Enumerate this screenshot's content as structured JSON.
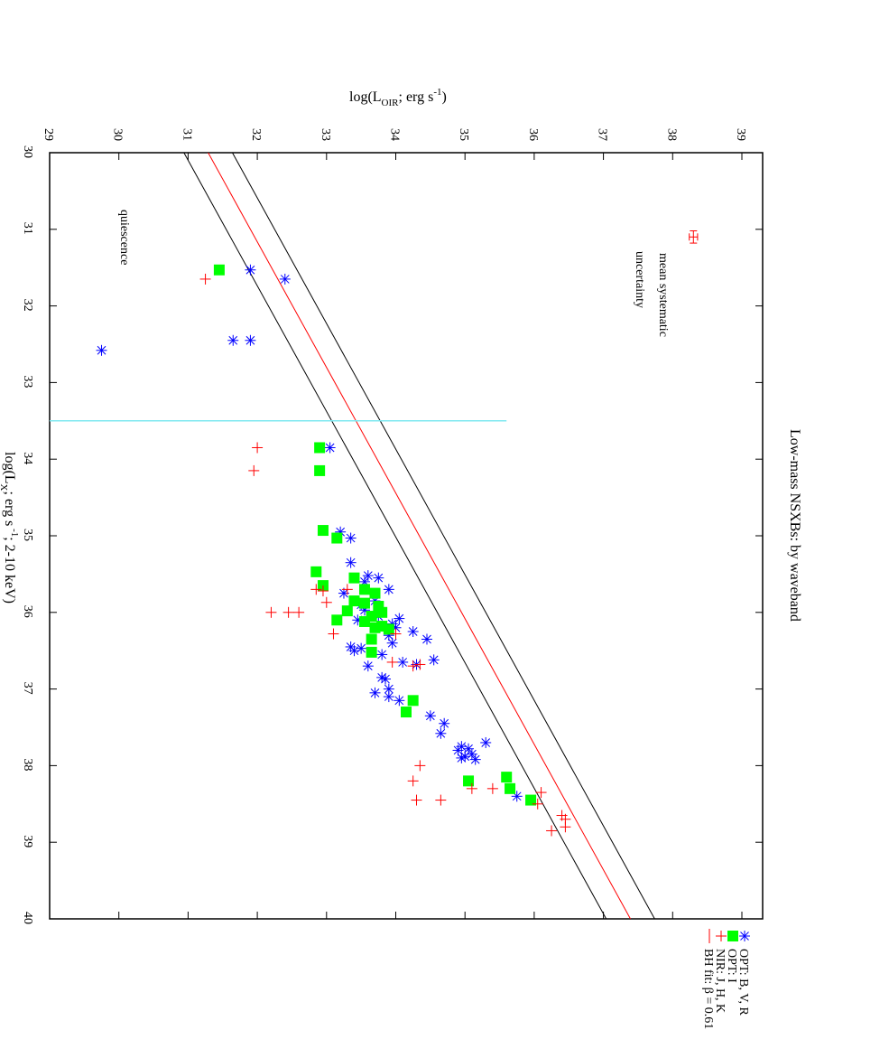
{
  "chart_data": {
    "type": "scatter",
    "orientation": "rotated 90 degrees clockwise (x axis runs top to bottom, y axis runs right to left)",
    "title": "Low-mass NSXBs: by waveband",
    "xlabel": "log(L_X; erg s^-1; 2-10 keV)",
    "ylabel": "log(L_OIR; erg s^-1)",
    "xlim": [
      30,
      40
    ],
    "ylim": [
      29,
      39.3
    ],
    "xticks": [
      "30",
      "31",
      "32",
      "33",
      "34",
      "35",
      "36",
      "37",
      "38",
      "39",
      "40"
    ],
    "yticks": [
      "29",
      "30",
      "31",
      "32",
      "33",
      "34",
      "35",
      "36",
      "37",
      "38",
      "39"
    ],
    "grid": false,
    "legend_position": "bottom-right",
    "annotations": [
      {
        "text": "mean systematic",
        "line2": "uncertainty"
      },
      {
        "text": "quiescence"
      }
    ],
    "series": [
      {
        "name": "OPT: B, V, R",
        "marker": "asterisk",
        "color": "#0000ff",
        "points": [
          [
            31.53,
            31.9
          ],
          [
            31.65,
            32.4
          ],
          [
            32.45,
            31.65
          ],
          [
            32.45,
            31.9
          ],
          [
            32.58,
            29.75
          ],
          [
            33.85,
            33.05
          ],
          [
            34.95,
            33.2
          ],
          [
            35.03,
            33.35
          ],
          [
            35.35,
            33.35
          ],
          [
            35.52,
            33.6
          ],
          [
            35.55,
            33.75
          ],
          [
            35.6,
            33.55
          ],
          [
            35.7,
            33.9
          ],
          [
            35.75,
            33.25
          ],
          [
            35.85,
            33.7
          ],
          [
            35.9,
            33.5
          ],
          [
            35.97,
            33.55
          ],
          [
            36.05,
            33.75
          ],
          [
            36.08,
            34.05
          ],
          [
            36.1,
            33.45
          ],
          [
            36.15,
            33.95
          ],
          [
            36.2,
            34.0
          ],
          [
            36.25,
            34.25
          ],
          [
            36.3,
            33.9
          ],
          [
            36.35,
            34.45
          ],
          [
            36.4,
            33.95
          ],
          [
            36.45,
            33.35
          ],
          [
            36.47,
            33.5
          ],
          [
            36.5,
            33.4
          ],
          [
            36.55,
            33.8
          ],
          [
            36.62,
            34.55
          ],
          [
            36.65,
            34.1
          ],
          [
            36.68,
            34.3
          ],
          [
            36.7,
            33.6
          ],
          [
            36.85,
            33.8
          ],
          [
            36.87,
            33.85
          ],
          [
            37.0,
            33.9
          ],
          [
            37.05,
            33.7
          ],
          [
            37.1,
            33.9
          ],
          [
            37.15,
            34.05
          ],
          [
            37.35,
            34.5
          ],
          [
            37.45,
            34.7
          ],
          [
            37.58,
            34.65
          ],
          [
            37.7,
            35.3
          ],
          [
            37.75,
            34.95
          ],
          [
            37.78,
            35.05
          ],
          [
            37.8,
            34.9
          ],
          [
            37.85,
            35.1
          ],
          [
            37.88,
            35.0
          ],
          [
            37.9,
            34.95
          ],
          [
            37.92,
            35.15
          ],
          [
            38.4,
            35.75
          ]
        ]
      },
      {
        "name": "OPT: I",
        "marker": "square",
        "color": "#00ff00",
        "points": [
          [
            31.53,
            31.45
          ],
          [
            33.85,
            32.9
          ],
          [
            34.15,
            32.9
          ],
          [
            34.93,
            32.95
          ],
          [
            35.03,
            33.15
          ],
          [
            35.47,
            32.85
          ],
          [
            35.55,
            33.4
          ],
          [
            35.65,
            32.95
          ],
          [
            35.7,
            33.55
          ],
          [
            35.75,
            33.7
          ],
          [
            35.85,
            33.4
          ],
          [
            35.88,
            33.55
          ],
          [
            35.92,
            33.75
          ],
          [
            35.98,
            33.3
          ],
          [
            36.0,
            33.8
          ],
          [
            36.05,
            33.65
          ],
          [
            36.1,
            33.15
          ],
          [
            36.12,
            33.55
          ],
          [
            36.18,
            33.8
          ],
          [
            36.2,
            33.7
          ],
          [
            36.22,
            33.9
          ],
          [
            36.35,
            33.65
          ],
          [
            36.52,
            33.65
          ],
          [
            37.15,
            34.25
          ],
          [
            37.3,
            34.15
          ],
          [
            38.2,
            35.05
          ],
          [
            38.15,
            35.6
          ],
          [
            38.3,
            35.65
          ],
          [
            38.45,
            35.95
          ]
        ]
      },
      {
        "name": "NIR: J, H, K",
        "marker": "plus",
        "color": "#ff0000",
        "points": [
          [
            31.65,
            31.25
          ],
          [
            33.85,
            32.0
          ],
          [
            34.15,
            31.95
          ],
          [
            35.7,
            32.85
          ],
          [
            35.7,
            33.3
          ],
          [
            35.72,
            32.95
          ],
          [
            35.87,
            33.0
          ],
          [
            36.0,
            32.2
          ],
          [
            36.0,
            32.45
          ],
          [
            36.0,
            32.6
          ],
          [
            36.28,
            33.1
          ],
          [
            36.28,
            34.0
          ],
          [
            36.65,
            33.95
          ],
          [
            36.68,
            34.35
          ],
          [
            36.7,
            34.25
          ],
          [
            38.0,
            34.35
          ],
          [
            38.2,
            34.25
          ],
          [
            38.3,
            35.1
          ],
          [
            38.3,
            35.4
          ],
          [
            38.45,
            34.3
          ],
          [
            38.45,
            34.65
          ],
          [
            38.35,
            36.1
          ],
          [
            38.5,
            36.05
          ],
          [
            38.65,
            36.4
          ],
          [
            38.7,
            36.45
          ],
          [
            38.8,
            36.45
          ],
          [
            38.85,
            36.25
          ]
        ]
      }
    ],
    "fit": {
      "name": "BH fit: β = 0.61",
      "slope": 0.61,
      "line_color": "#ff0000",
      "band_color": "#000000",
      "intercept_center_at_x30": 31.29,
      "band_offsets": [
        -0.35,
        0.35
      ]
    },
    "reference_line": {
      "x": 33.5,
      "y_from": 29,
      "y_to": 35.6,
      "color": "#7fe8f0"
    },
    "error_marker": {
      "x": 31.1,
      "y": 38.3,
      "x_err": 0.08,
      "y_err": 0.06,
      "color": "#ff0000"
    }
  }
}
